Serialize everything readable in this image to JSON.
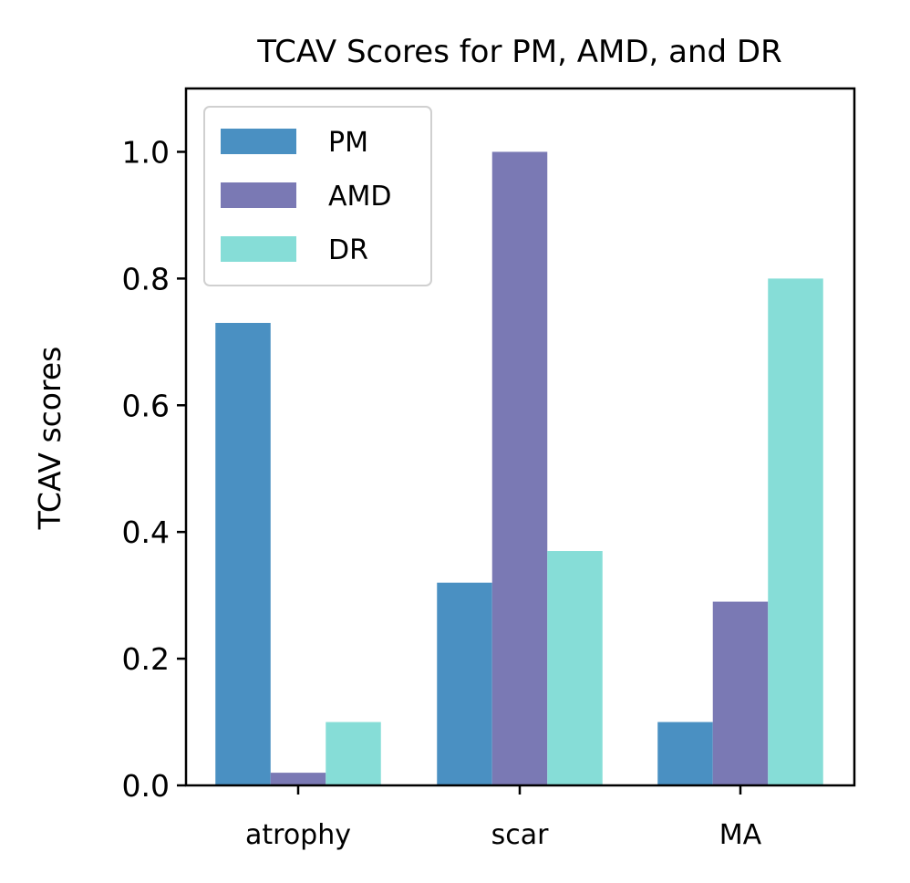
{
  "chart_data": {
    "type": "bar",
    "title": "TCAV Scores for PM, AMD, and DR",
    "xlabel": "",
    "ylabel": "TCAV scores",
    "categories": [
      "atrophy",
      "scar",
      "MA"
    ],
    "series": [
      {
        "name": "PM",
        "color": "#4a90c2",
        "values": [
          0.73,
          0.32,
          0.1
        ]
      },
      {
        "name": "AMD",
        "color": "#7a79b4",
        "values": [
          0.02,
          1.0,
          0.29
        ]
      },
      {
        "name": "DR",
        "color": "#86ddd7",
        "values": [
          0.1,
          0.37,
          0.8
        ]
      }
    ],
    "ylim": [
      0,
      1.1
    ],
    "yticks": [
      0.0,
      0.2,
      0.4,
      0.6,
      0.8,
      1.0
    ],
    "ytick_labels": [
      "0.0",
      "0.2",
      "0.4",
      "0.6",
      "0.8",
      "1.0"
    ],
    "grid": false,
    "legend_position": "top-left"
  }
}
